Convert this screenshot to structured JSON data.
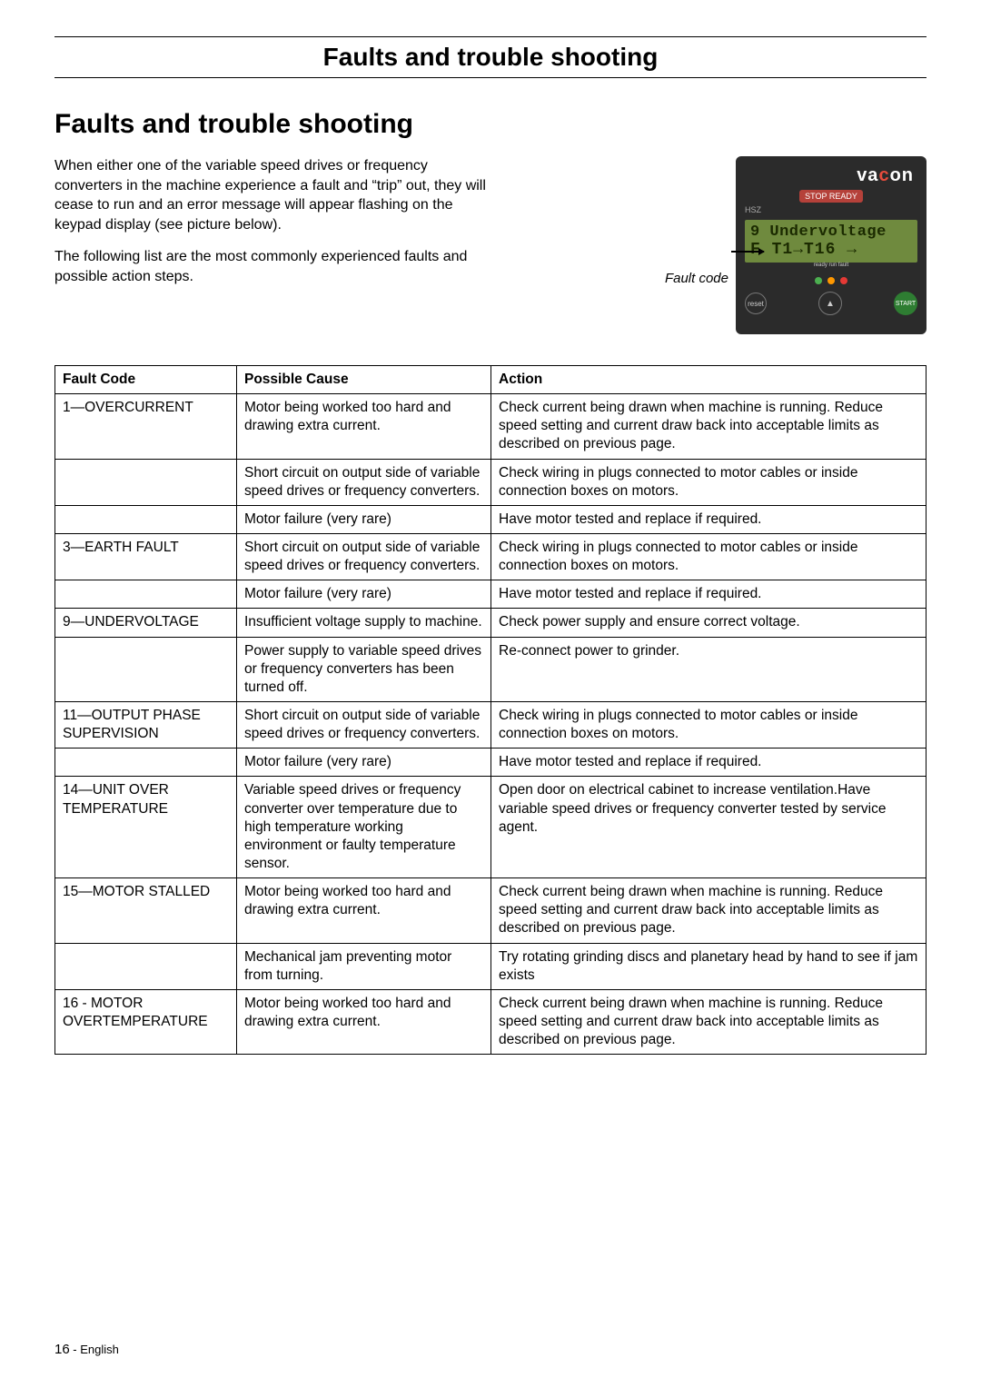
{
  "header": {
    "title": "Faults and trouble shooting"
  },
  "section": {
    "title": "Faults and trouble shooting"
  },
  "intro": {
    "p1": "When either one of the variable speed drives or frequency converters in the machine experience a fault and “trip” out, they will cease to run and an error message will appear flashing on the keypad display (see picture below).",
    "p2": "The following list are the most commonly experienced faults and possible action steps.",
    "caption": "Fault code"
  },
  "device": {
    "brand_pre": "va",
    "brand_post": "on",
    "badge": "STOP  READY",
    "small": "HSZ",
    "lcd_line1": "9 Undervoltage",
    "lcd_line2": "F   T1→T16 →",
    "led_labels": "ready  run  fault",
    "reset": "reset",
    "start": "START"
  },
  "table": {
    "headers": {
      "code": "Fault Code",
      "cause": "Possible Cause",
      "action": "Action"
    },
    "rows": [
      {
        "code": "1—OVERCURRENT",
        "cause": "Motor being worked too hard and drawing extra current.",
        "action": "Check current being drawn when machine is running. Reduce speed setting and current draw back into acceptable limits as described on previous page."
      },
      {
        "code": "",
        "cause": "Short circuit on output side of variable speed drives or frequency converters.",
        "action": "Check wiring in plugs connected to motor cables or inside connection boxes on motors."
      },
      {
        "code": "",
        "cause": "Motor failure (very rare)",
        "action": "Have motor tested and replace if required."
      },
      {
        "code": "3—EARTH FAULT",
        "cause": "Short circuit on output side of variable speed drives or frequency converters.",
        "action": "Check wiring in plugs connected to motor cables or inside connection boxes on motors."
      },
      {
        "code": "",
        "cause": "Motor failure (very rare)",
        "action": "Have motor tested and replace if required."
      },
      {
        "code": "9—UNDERVOLTAGE",
        "cause": "Insufficient voltage supply to machine.",
        "action": "Check power supply and ensure correct voltage."
      },
      {
        "code": "",
        "cause": "Power supply to variable speed drives or frequency converters has been turned off.",
        "action": "Re-connect power to grinder."
      },
      {
        "code": "11—OUTPUT PHASE SUPERVISION",
        "cause": "Short circuit on output side of variable speed drives or frequency converters.",
        "action": "Check wiring in plugs connected to motor cables or inside connection boxes on motors."
      },
      {
        "code": "",
        "cause": "Motor failure (very rare)",
        "action": "Have motor tested and replace if required."
      },
      {
        "code": "14—UNIT OVER TEMPERATURE",
        "cause": "Variable speed drives or frequency converter over temperature due to high temperature working environment or faulty temperature sensor.",
        "action": "Open door on electrical cabinet to increase ventilation.Have variable speed drives or frequency converter tested by service agent."
      },
      {
        "code": "15—MOTOR STALLED",
        "cause": "Motor being worked too hard and drawing extra current.",
        "action": "Check current being drawn when machine is running. Reduce speed setting and current draw back into acceptable limits as described on previous page."
      },
      {
        "code": "",
        "cause": "Mechanical jam preventing motor from turning.",
        "action": "Try rotating grinding discs and planetary head by hand to see if jam exists"
      },
      {
        "code": "16 - MOTOR OVERTEMPERATURE",
        "cause": "Motor being worked too hard and drawing extra current.",
        "action": "Check current being drawn when machine is running. Reduce speed setting and current draw back into acceptable limits as described on previous page."
      }
    ]
  },
  "footer": {
    "page": "16",
    "lang": " - English"
  }
}
